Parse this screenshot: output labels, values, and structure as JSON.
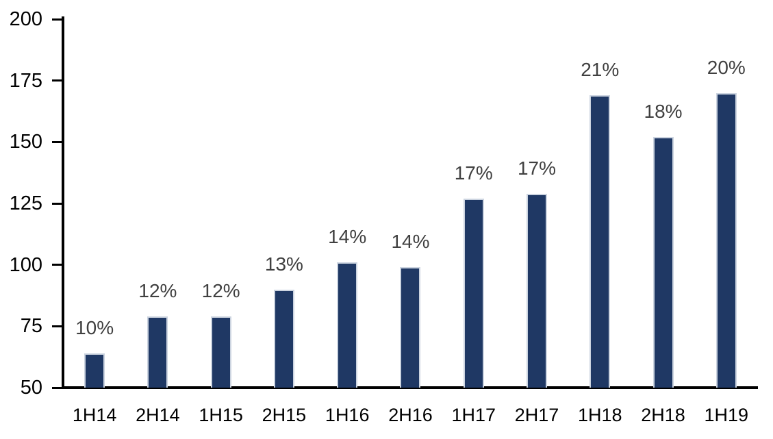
{
  "chart_data": {
    "type": "bar",
    "title": "",
    "xlabel": "",
    "ylabel": "",
    "categories": [
      "1H14",
      "2H14",
      "1H15",
      "2H15",
      "1H16",
      "2H16",
      "1H17",
      "2H17",
      "1H18",
      "2H18",
      "1H19"
    ],
    "values": [
      64,
      79,
      79,
      90,
      101,
      99,
      127,
      129,
      169,
      152,
      170
    ],
    "data_labels": [
      "10%",
      "12%",
      "12%",
      "13%",
      "14%",
      "14%",
      "17%",
      "17%",
      "21%",
      "18%",
      "20%"
    ],
    "y_ticks": [
      200,
      175,
      150,
      125,
      100,
      75,
      50
    ],
    "ylim": [
      50,
      200
    ],
    "grid": false,
    "legend": false,
    "colors": {
      "bar_fill": "#1f3864",
      "bar_border": "#ccd4e0",
      "data_label": "#404040",
      "axis_text": "#000000",
      "axis_line": "#000000"
    }
  }
}
